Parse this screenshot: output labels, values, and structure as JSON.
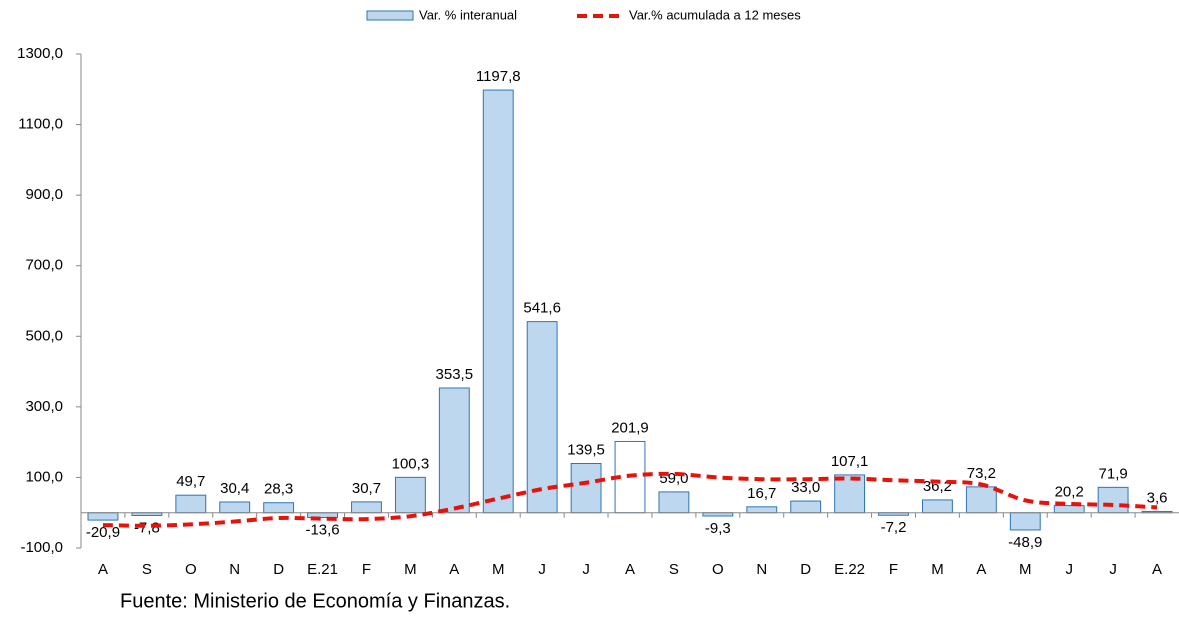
{
  "chart_data": {
    "type": "bar-line",
    "categories": [
      "A",
      "S",
      "O",
      "N",
      "D",
      "E.21",
      "F",
      "M",
      "A",
      "M",
      "J",
      "J",
      "A",
      "S",
      "O",
      "N",
      "D",
      "E.22",
      "F",
      "M",
      "A",
      "M",
      "J",
      "J",
      "A"
    ],
    "series": [
      {
        "name": "Var. % interanual",
        "type": "bar",
        "color": "#bdd7ee",
        "edge_color": "#2e75b6",
        "colors": [
          "#bdd7ee",
          "#bdd7ee",
          "#bdd7ee",
          "#bdd7ee",
          "#bdd7ee",
          "#bdd7ee",
          "#bdd7ee",
          "#bdd7ee",
          "#bdd7ee",
          "#bdd7ee",
          "#bdd7ee",
          "#bdd7ee",
          "#ffffff",
          "#bdd7ee",
          "#bdd7ee",
          "#bdd7ee",
          "#bdd7ee",
          "#bdd7ee",
          "#bdd7ee",
          "#bdd7ee",
          "#bdd7ee",
          "#bdd7ee",
          "#bdd7ee",
          "#bdd7ee",
          "#bdd7ee"
        ],
        "values": [
          -20.9,
          -7.8,
          49.7,
          30.4,
          28.3,
          -13.6,
          30.7,
          100.3,
          353.5,
          1197.8,
          541.6,
          139.5,
          201.9,
          59.0,
          -9.3,
          16.7,
          33.0,
          107.1,
          -7.2,
          36.2,
          73.2,
          -48.9,
          20.2,
          71.9,
          3.6
        ],
        "value_labels": [
          "-20,9",
          "-7,8",
          "49,7",
          "30,4",
          "28,3",
          "-13,6",
          "30,7",
          "100,3",
          "353,5",
          "1197,8",
          "541,6",
          "139,5",
          "201,9",
          "59,0",
          "-9,3",
          "16,7",
          "33,0",
          "107,1",
          "-7,2",
          "36,2",
          "73,2",
          "-48,9",
          "20,2",
          "71,9",
          "3,6"
        ]
      },
      {
        "name": "Var.% acumulada a 12 meses",
        "type": "line",
        "color": "#e8120c",
        "dashed": true,
        "values": [
          -35,
          -37,
          -33,
          -25,
          -15,
          -17,
          -18,
          -10,
          12,
          40,
          67,
          85,
          105,
          110,
          100,
          95,
          95,
          97,
          92,
          88,
          80,
          35,
          25,
          22,
          15
        ]
      }
    ],
    "ylim": [
      -100,
      1300
    ],
    "yticks": [
      {
        "value": -100,
        "label": "-100,0"
      },
      {
        "value": 100,
        "label": "100,0"
      },
      {
        "value": 300,
        "label": "300,0"
      },
      {
        "value": 500,
        "label": "500,0"
      },
      {
        "value": 700,
        "label": "700,0"
      },
      {
        "value": 900,
        "label": "900,0"
      },
      {
        "value": 1100,
        "label": "1100,0"
      },
      {
        "value": 1300,
        "label": "1300,0"
      }
    ],
    "source": "Fuente: Ministerio de Economía y Finanzas."
  }
}
